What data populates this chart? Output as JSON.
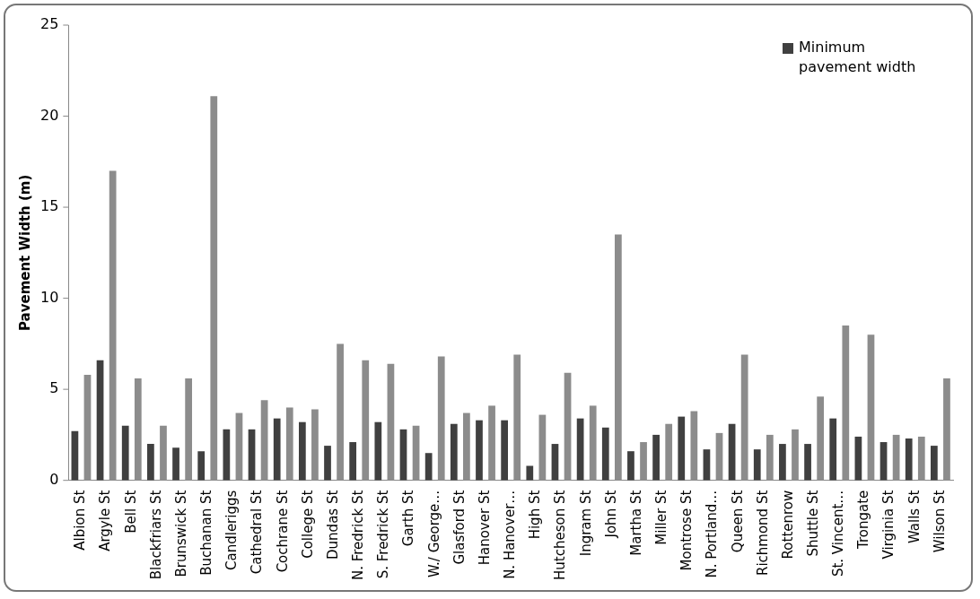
{
  "chart_data": {
    "type": "bar",
    "ylabel": "Pavement Width (m)",
    "categories": [
      "Albion St",
      "Argyle St",
      "Bell St",
      "Blackfriars St",
      "Brunswick St",
      "Buchanan St",
      "Candleriggs",
      "Cathedral St",
      "Cochrane St",
      "College St",
      "Dundas St",
      "N. Fredrick St",
      "S. Fredrick St",
      "Garth St",
      "W./ George…",
      "Glasford St",
      "Hanover St",
      "N. Hanover…",
      "High St",
      "Hutcheson St",
      "Ingram St",
      "John St",
      "Martha St",
      "Miller St",
      "Montrose St",
      "N. Portland…",
      "Queen St",
      "Richmond St",
      "Rottenrow",
      "Shuttle St",
      "St. Vincent…",
      "Trongate",
      "Virginia St",
      "Walls St",
      "Wilson St"
    ],
    "series": [
      {
        "name": "Minimum pavement width",
        "color": "#404040",
        "values": [
          2.7,
          6.6,
          3.0,
          2.0,
          1.8,
          1.6,
          2.8,
          2.8,
          3.4,
          3.2,
          1.9,
          2.1,
          3.2,
          2.8,
          1.5,
          3.1,
          3.3,
          3.3,
          0.8,
          2.0,
          3.4,
          2.9,
          1.6,
          2.5,
          3.5,
          1.7,
          3.1,
          1.7,
          2.0,
          2.0,
          3.4,
          2.4,
          2.1,
          2.3,
          1.9
        ]
      },
      {
        "color": "#8c8c8c",
        "values": [
          5.8,
          17.0,
          5.6,
          3.0,
          5.6,
          21.1,
          3.7,
          4.4,
          4.0,
          3.9,
          7.5,
          6.6,
          6.4,
          3.0,
          6.8,
          3.7,
          4.1,
          6.9,
          3.6,
          5.9,
          4.1,
          13.5,
          2.1,
          3.1,
          3.8,
          2.6,
          6.9,
          2.5,
          2.8,
          4.6,
          8.5,
          8.0,
          2.5,
          2.4,
          5.6
        ]
      }
    ],
    "ylim": [
      0,
      25
    ],
    "yticks": [
      0,
      5,
      10,
      15,
      20,
      25
    ],
    "grid": false,
    "legend": "top right"
  }
}
